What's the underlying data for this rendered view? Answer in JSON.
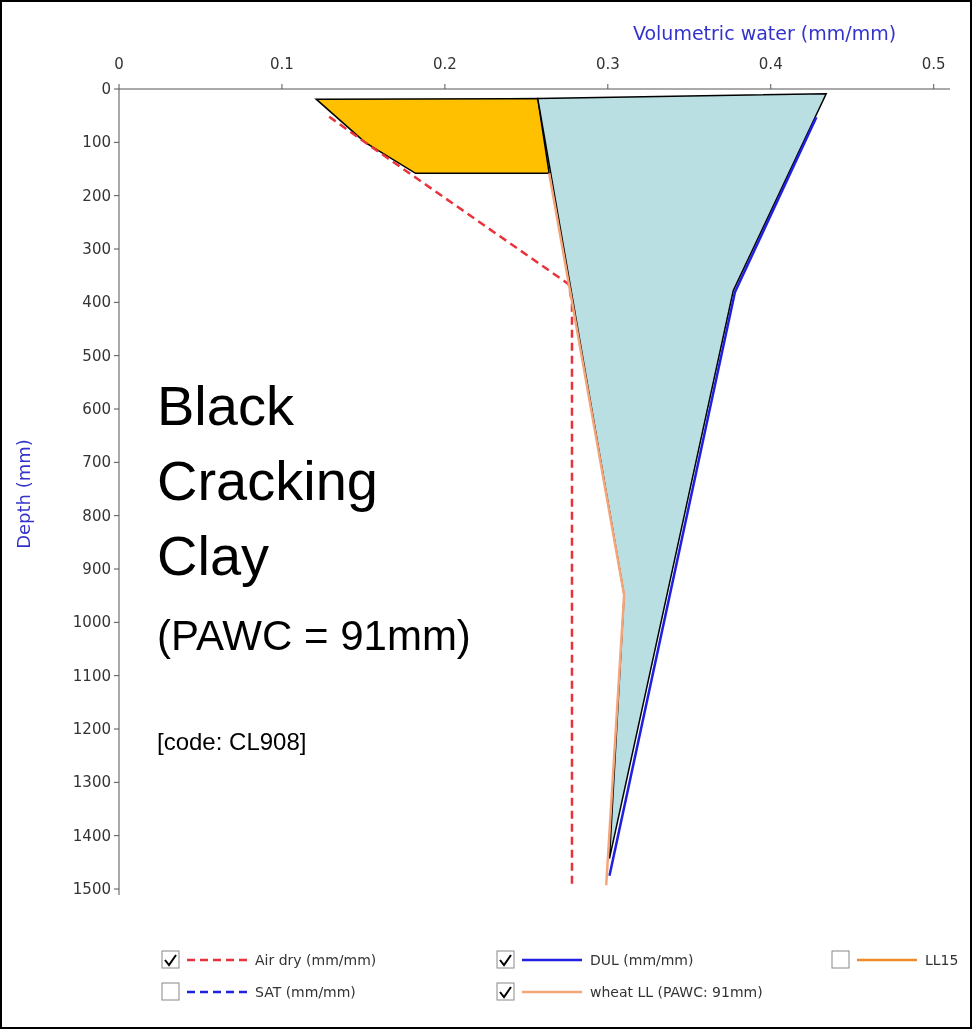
{
  "chart_data": {
    "type": "line",
    "xlabel": "Volumetric water (mm/mm)",
    "ylabel": "Depth (mm)",
    "xlim": [
      0,
      0.51
    ],
    "xticks": [
      0,
      0.1,
      0.2,
      0.3,
      0.4,
      0.5
    ],
    "ylim": [
      1500,
      0
    ],
    "yticks": [
      0,
      100,
      200,
      300,
      400,
      500,
      600,
      700,
      800,
      900,
      1000,
      1100,
      1200,
      1300,
      1400,
      1500
    ],
    "grid": false,
    "legend": "bottom",
    "series": [
      {
        "type": "area",
        "color": "#ffc000",
        "x": [
          0.121,
          0.257,
          0.264,
          0.182,
          0.151
        ],
        "values": [
          19,
          18,
          158,
          158,
          100
        ]
      },
      {
        "type": "area",
        "color": "#b9dfe2",
        "x": [
          0.257,
          0.434,
          0.377,
          0.301,
          0.31
        ],
        "values": [
          18,
          9,
          378,
          1443,
          949
        ]
      },
      {
        "name": "Air dry (mm/mm)",
        "color": "#e8323c",
        "line_style": "dashed",
        "x": [
          0.129,
          0.151,
          0.276,
          0.278,
          0.278
        ],
        "values": [
          52,
          100,
          366,
          400,
          1493
        ]
      },
      {
        "name": "SAT (mm/mm)",
        "color": "#2020e0",
        "line_style": "dashed"
      },
      {
        "name": "DUL (mm/mm)",
        "color": "#2020e0",
        "line_style": "solid",
        "x": [
          0.428,
          0.378,
          0.301
        ],
        "values": [
          53,
          381,
          1475
        ]
      },
      {
        "name": "wheat LL (PAWC: 91mm)",
        "color": "#f4a57a",
        "line_style": "solid",
        "x": [
          0.264,
          0.31,
          0.299
        ],
        "values": [
          158,
          949,
          1493
        ]
      },
      {
        "name": "LL15",
        "color": "#f08a24",
        "line_style": "solid"
      }
    ],
    "annotations": [
      "Black",
      "Cracking",
      "Clay",
      "(PAWC = 91mm)",
      "[code: CL908]"
    ]
  }
}
